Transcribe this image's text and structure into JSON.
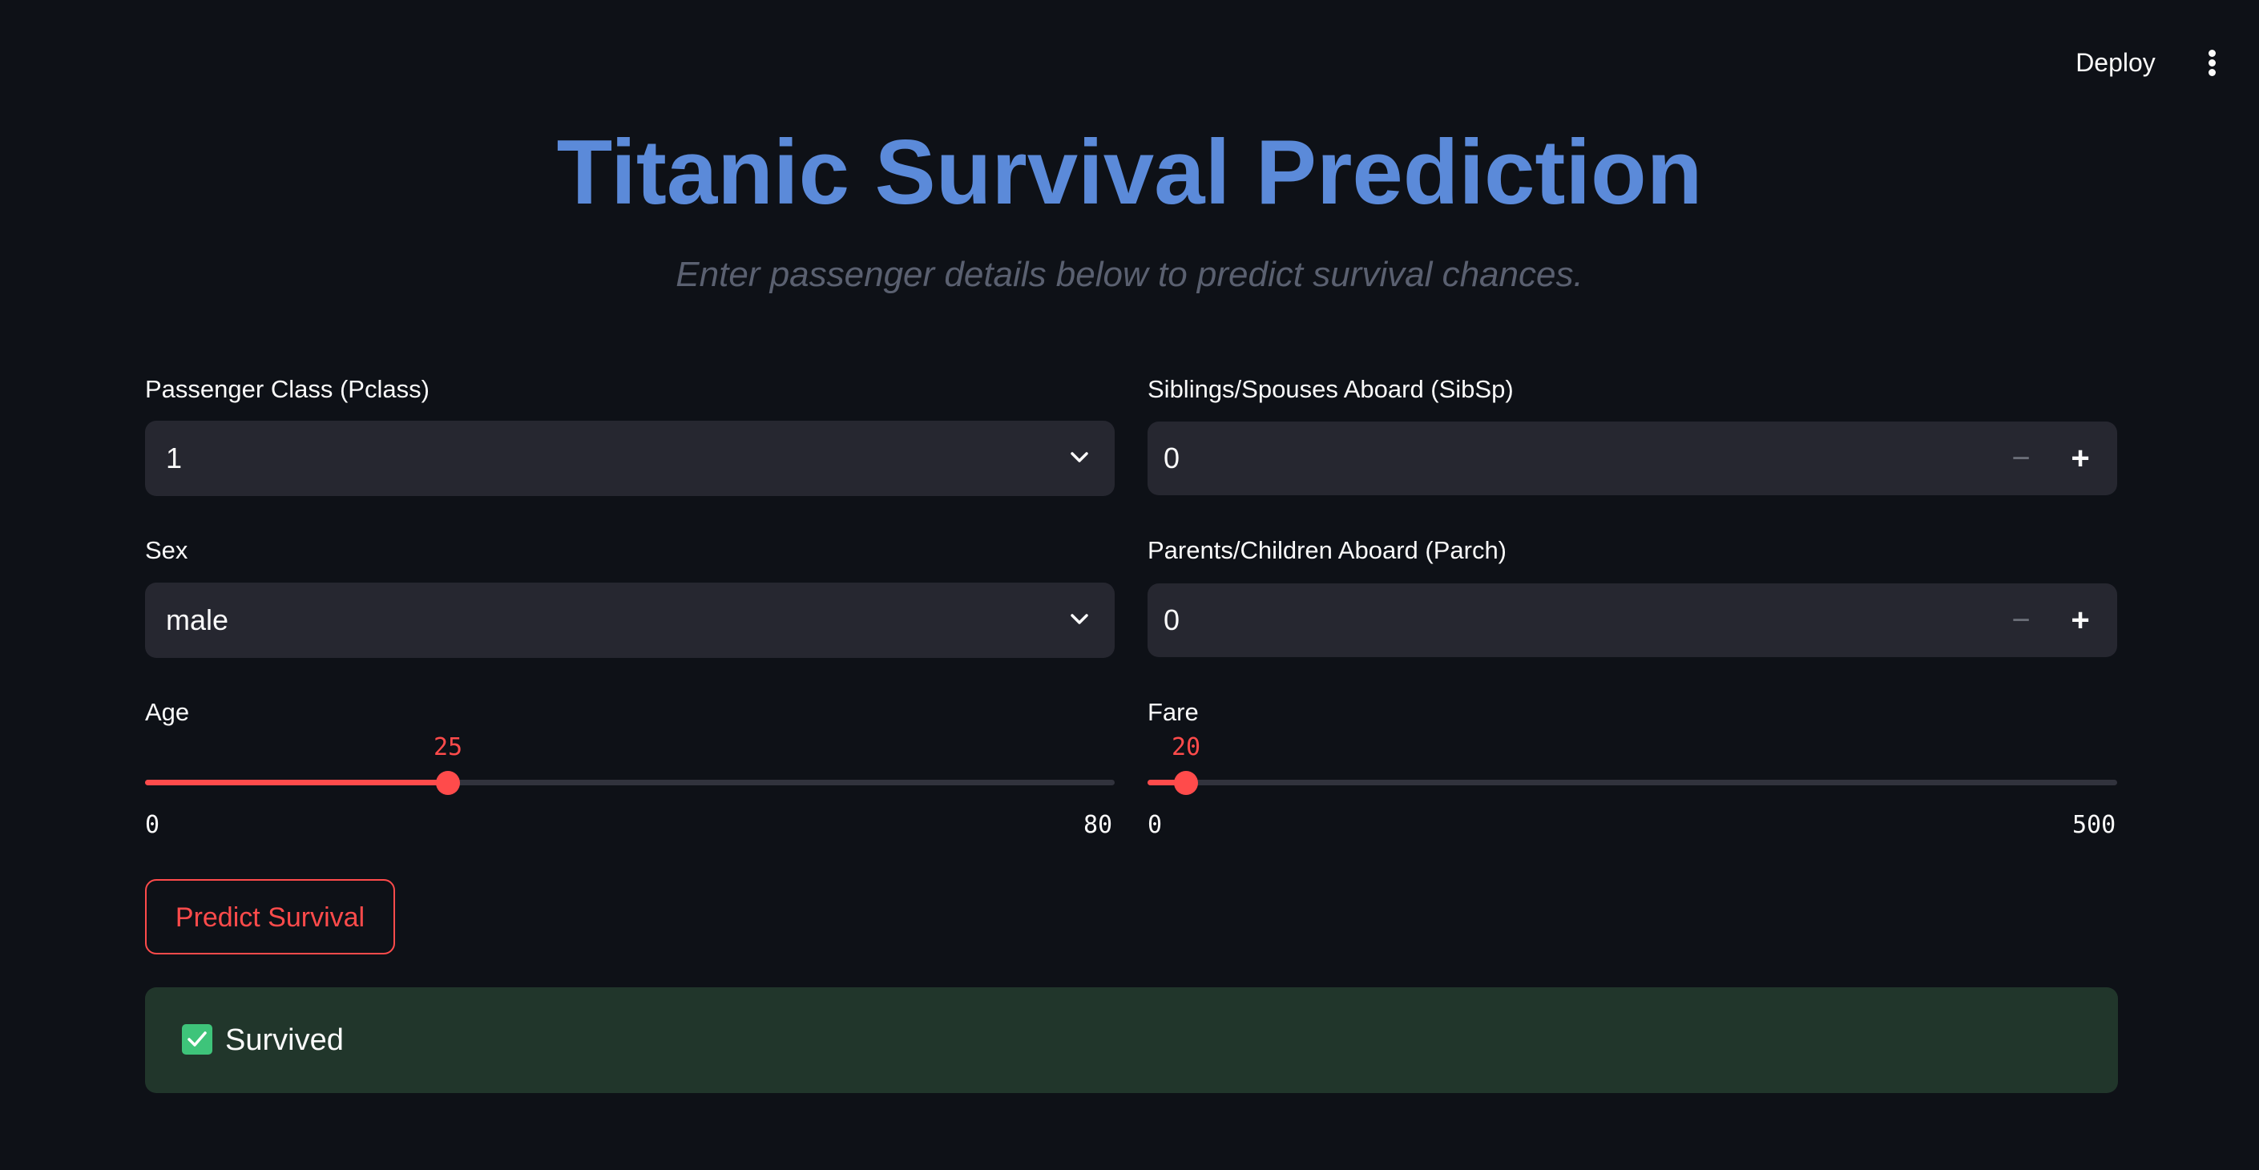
{
  "header": {
    "deploy_label": "Deploy",
    "menu_icon": "vertical-ellipsis-icon"
  },
  "page": {
    "title": "Titanic Survival Prediction",
    "subtitle": "Enter passenger details below to predict survival chances."
  },
  "form": {
    "pclass": {
      "label": "Passenger Class (Pclass)",
      "value": "1"
    },
    "sex": {
      "label": "Sex",
      "value": "male"
    },
    "age": {
      "label": "Age",
      "value": "25",
      "min": "0",
      "max": "80",
      "fraction": 0.3125
    },
    "sibsp": {
      "label": "Siblings/Spouses Aboard (SibSp)",
      "value": "0",
      "minus": "−",
      "plus": "+"
    },
    "parch": {
      "label": "Parents/Children Aboard (Parch)",
      "value": "0",
      "minus": "−",
      "plus": "+"
    },
    "fare": {
      "label": "Fare",
      "value": "20",
      "min": "0",
      "max": "500",
      "fraction": 0.04
    }
  },
  "actions": {
    "predict_label": "Predict Survival"
  },
  "result": {
    "icon": "check-box-icon",
    "text": "Survived",
    "accent": "#3ec47a"
  },
  "colors": {
    "title": "#5b8ad9",
    "primary": "#ff4b4b",
    "background": "#0e1117",
    "success_bg": "#21362b"
  }
}
